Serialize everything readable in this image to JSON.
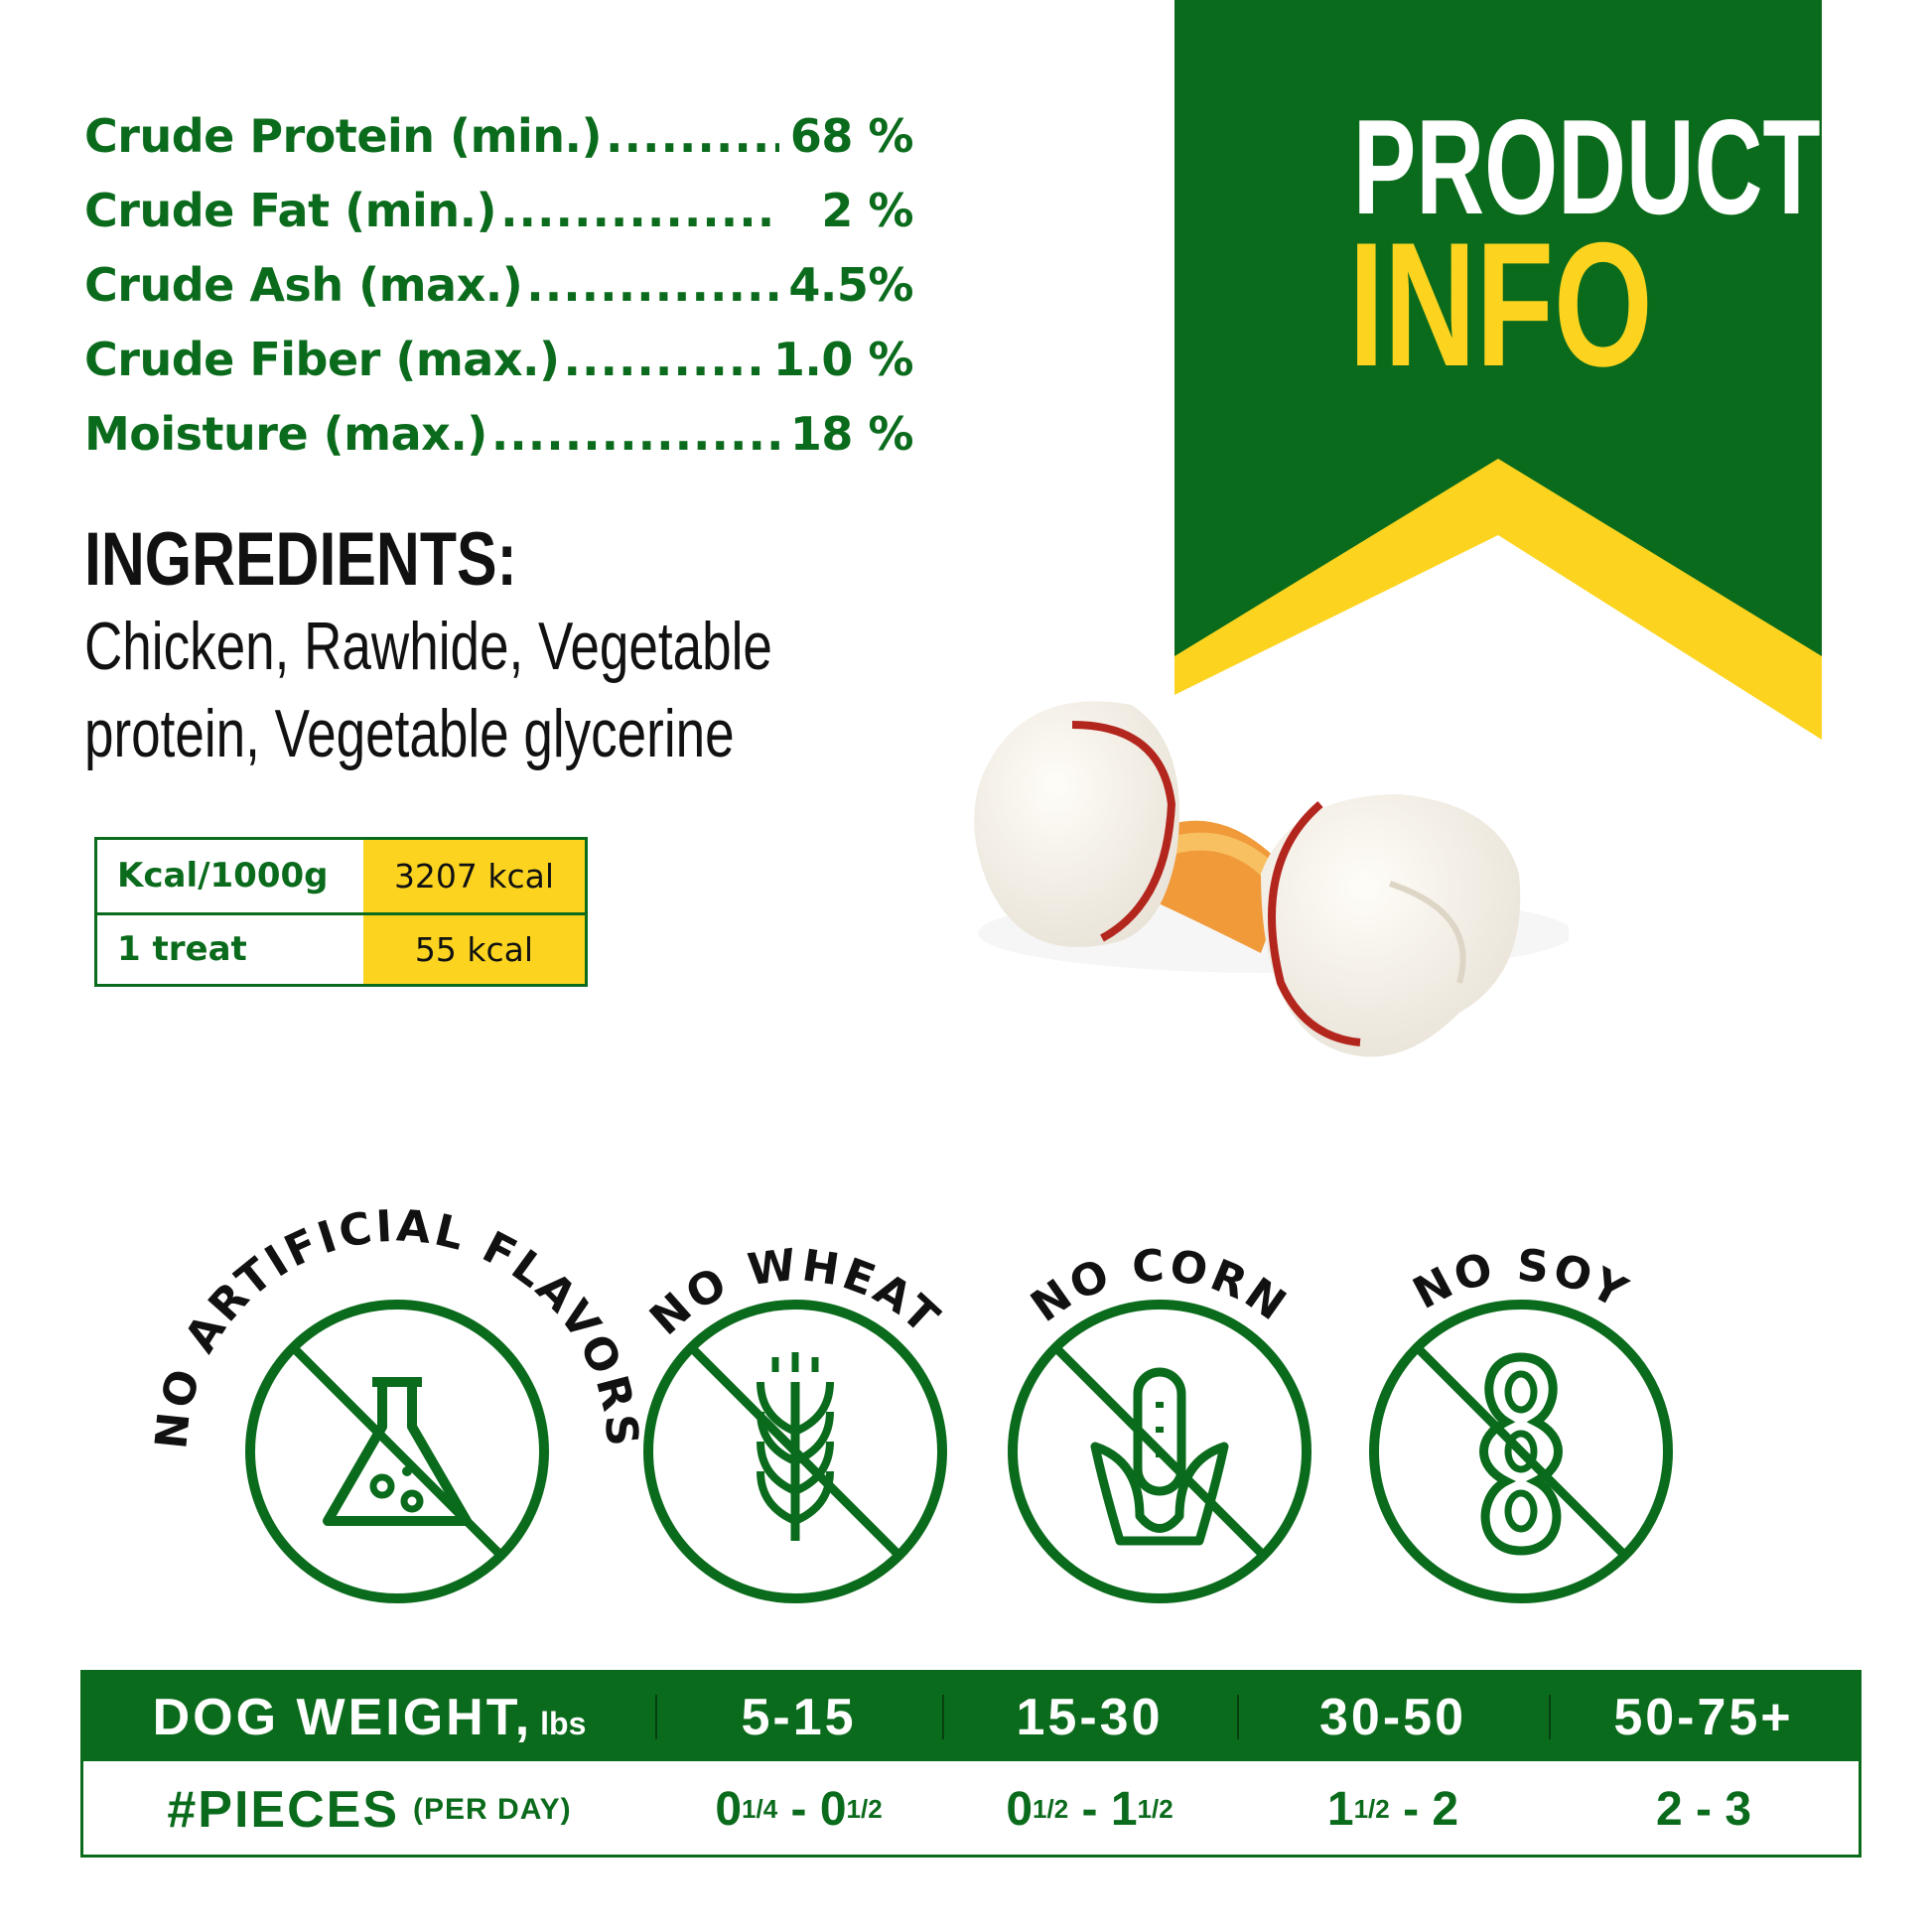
{
  "banner": {
    "line1": "PRODUCT",
    "line2": "INFO",
    "colors": {
      "green": "#0b6b1c",
      "yellow": "#fcd41f"
    }
  },
  "analysis": [
    {
      "label": "Crude Protein (min.)",
      "value": "68 %"
    },
    {
      "label": "Crude Fat (min.)",
      "value": "2 %"
    },
    {
      "label": "Crude Ash (max.)",
      "value": "4.5%"
    },
    {
      "label": "Crude Fiber (max.)",
      "value": "1.0 %"
    },
    {
      "label": "Moisture (max.)",
      "value": "18 %"
    }
  ],
  "ingredients": {
    "title": "INGREDIENTS:",
    "line1": "Chicken, Rawhide, Vegetable",
    "line2": "protein, Vegetable glycerine"
  },
  "calories": [
    {
      "label": "Kcal/1000g",
      "value": "3207 kcal"
    },
    {
      "label": "1 treat",
      "value": "55 kcal"
    }
  ],
  "badges": [
    {
      "label": "NO ARTIFICIAL FLAVORS",
      "icon": "flask-icon"
    },
    {
      "label": "NO WHEAT",
      "icon": "wheat-icon"
    },
    {
      "label": "NO CORN",
      "icon": "corn-icon"
    },
    {
      "label": "NO SOY",
      "icon": "soybean-icon"
    }
  ],
  "feeding": {
    "header_label": "DOG WEIGHT,",
    "header_unit": "lbs",
    "weights": [
      "5-15",
      "15-30",
      "30-50",
      "50-75+"
    ],
    "row_label": "#PIECES",
    "row_unit": "(PER DAY)",
    "pieces": [
      {
        "a": "0",
        "a_sup": "1/4",
        "sep": " - ",
        "b": "0",
        "b_sup": "1/2"
      },
      {
        "a": "0",
        "a_sup": "1/2",
        "sep": " - ",
        "b": "1",
        "b_sup": "1/2"
      },
      {
        "a": "1",
        "a_sup": "1/2",
        "sep": " - ",
        "b": "2",
        "b_sup": ""
      },
      {
        "a": "2",
        "a_sup": "",
        "sep": " - ",
        "b": "3",
        "b_sup": ""
      }
    ]
  }
}
